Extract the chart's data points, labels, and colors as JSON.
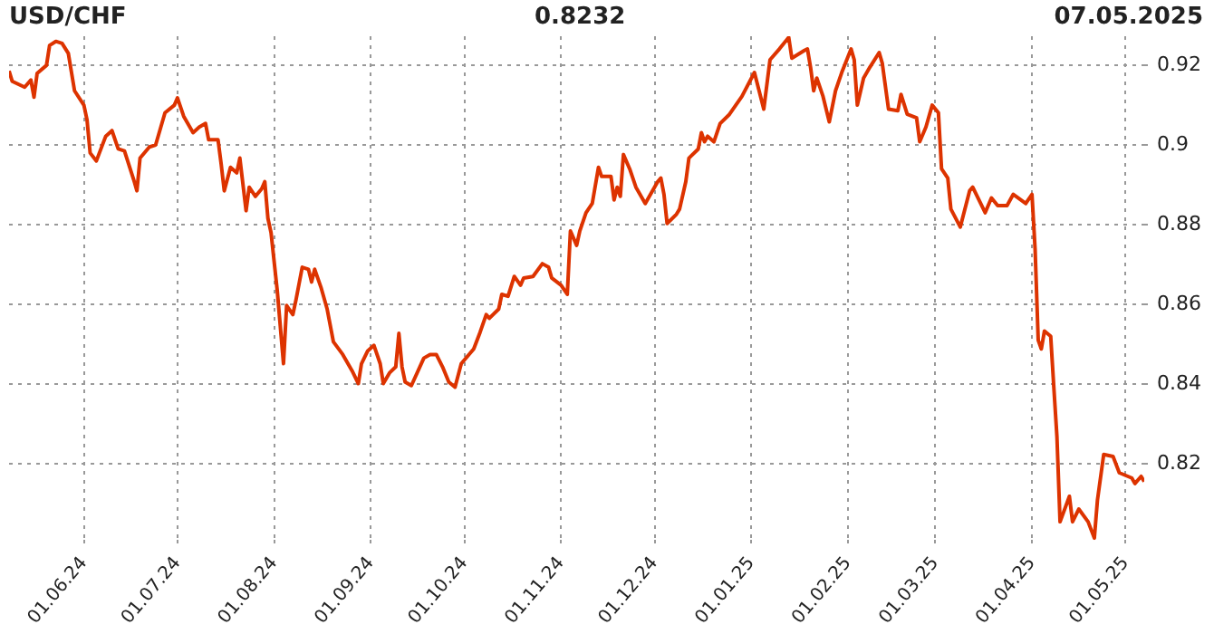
{
  "chart_data": {
    "type": "line",
    "title": "USD/CHF",
    "annotations": [
      "0.8232",
      "07.05.2025"
    ],
    "x": [
      "2024-05-08",
      "2024-05-09",
      "2024-05-13",
      "2024-05-15",
      "2024-05-16",
      "2024-05-17",
      "2024-05-20",
      "2024-05-21",
      "2024-05-23",
      "2024-05-25",
      "2024-05-27",
      "2024-05-29",
      "2024-06-01",
      "2024-06-02",
      "2024-06-03",
      "2024-06-05",
      "2024-06-08",
      "2024-06-10",
      "2024-06-12",
      "2024-06-14",
      "2024-06-17",
      "2024-06-18",
      "2024-06-19",
      "2024-06-22",
      "2024-06-24",
      "2024-06-27",
      "2024-06-30",
      "2024-07-01",
      "2024-07-03",
      "2024-07-06",
      "2024-07-08",
      "2024-07-10",
      "2024-07-11",
      "2024-07-14",
      "2024-07-15",
      "2024-07-16",
      "2024-07-18",
      "2024-07-20",
      "2024-07-21",
      "2024-07-23",
      "2024-07-24",
      "2024-07-26",
      "2024-07-28",
      "2024-07-29",
      "2024-07-30",
      "2024-07-31",
      "2024-08-02",
      "2024-08-04",
      "2024-08-05",
      "2024-08-07",
      "2024-08-08",
      "2024-08-10",
      "2024-08-12",
      "2024-08-13",
      "2024-08-14",
      "2024-08-16",
      "2024-08-18",
      "2024-08-20",
      "2024-08-23",
      "2024-08-26",
      "2024-08-28",
      "2024-08-29",
      "2024-08-31",
      "2024-09-02",
      "2024-09-04",
      "2024-09-05",
      "2024-09-07",
      "2024-09-09",
      "2024-09-10",
      "2024-09-11",
      "2024-09-12",
      "2024-09-14",
      "2024-09-18",
      "2024-09-20",
      "2024-09-22",
      "2024-09-24",
      "2024-09-26",
      "2024-09-28",
      "2024-09-30",
      "2024-10-04",
      "2024-10-06",
      "2024-10-08",
      "2024-10-09",
      "2024-10-12",
      "2024-10-13",
      "2024-10-15",
      "2024-10-17",
      "2024-10-19",
      "2024-10-20",
      "2024-10-23",
      "2024-10-26",
      "2024-10-28",
      "2024-10-29",
      "2024-11-01",
      "2024-11-03",
      "2024-11-04",
      "2024-11-06",
      "2024-11-07",
      "2024-11-09",
      "2024-11-11",
      "2024-11-13",
      "2024-11-14",
      "2024-11-17",
      "2024-11-18",
      "2024-11-19",
      "2024-11-20",
      "2024-11-21",
      "2024-11-23",
      "2024-11-25",
      "2024-11-28",
      "2024-12-02",
      "2024-12-03",
      "2024-12-04",
      "2024-12-05",
      "2024-12-08",
      "2024-12-09",
      "2024-12-11",
      "2024-12-12",
      "2024-12-15",
      "2024-12-16",
      "2024-12-17",
      "2024-12-18",
      "2024-12-20",
      "2024-12-22",
      "2024-12-25",
      "2024-12-29",
      "2025-01-02",
      "2025-01-05",
      "2025-01-07",
      "2025-01-10",
      "2025-01-13",
      "2025-01-14",
      "2025-01-18",
      "2025-01-19",
      "2025-01-20",
      "2025-01-21",
      "2025-01-22",
      "2025-01-24",
      "2025-01-26",
      "2025-01-28",
      "2025-01-30",
      "2025-02-02",
      "2025-02-03",
      "2025-02-04",
      "2025-02-06",
      "2025-02-08",
      "2025-02-11",
      "2025-02-12",
      "2025-02-14",
      "2025-02-17",
      "2025-02-18",
      "2025-02-20",
      "2025-02-23",
      "2025-02-24",
      "2025-02-26",
      "2025-02-28",
      "2025-03-02",
      "2025-03-03",
      "2025-03-05",
      "2025-03-06",
      "2025-03-09",
      "2025-03-12",
      "2025-03-13",
      "2025-03-17",
      "2025-03-19",
      "2025-03-21",
      "2025-03-24",
      "2025-03-26",
      "2025-03-30",
      "2025-04-01",
      "2025-04-02",
      "2025-04-03",
      "2025-04-04",
      "2025-04-05",
      "2025-04-07",
      "2025-04-08",
      "2025-04-09",
      "2025-04-10",
      "2025-04-13",
      "2025-04-14",
      "2025-04-16",
      "2025-04-19",
      "2025-04-21",
      "2025-04-22",
      "2025-04-24",
      "2025-04-27",
      "2025-04-29",
      "2025-05-03",
      "2025-05-04",
      "2025-05-06",
      "2025-05-07"
    ],
    "series": [
      {
        "color": "#dd3300",
        "values": [
          0.9186,
          0.916,
          0.9145,
          0.9163,
          0.912,
          0.918,
          0.92,
          0.925,
          0.926,
          0.9255,
          0.923,
          0.9136,
          0.91,
          0.9063,
          0.898,
          0.896,
          0.9022,
          0.9036,
          0.899,
          0.8985,
          0.8912,
          0.8885,
          0.8967,
          0.8995,
          0.9,
          0.9081,
          0.91,
          0.9118,
          0.9072,
          0.9031,
          0.9045,
          0.9054,
          0.9013,
          0.9013,
          0.8953,
          0.8885,
          0.8944,
          0.893,
          0.8967,
          0.8835,
          0.8894,
          0.8871,
          0.889,
          0.8908,
          0.8816,
          0.878,
          0.8634,
          0.8451,
          0.8597,
          0.8574,
          0.8611,
          0.8693,
          0.8688,
          0.8656,
          0.8688,
          0.8643,
          0.8588,
          0.8506,
          0.8474,
          0.8433,
          0.8401,
          0.8451,
          0.8483,
          0.8497,
          0.8451,
          0.8401,
          0.8428,
          0.8443,
          0.8527,
          0.8443,
          0.8405,
          0.8396,
          0.8465,
          0.8474,
          0.8474,
          0.8443,
          0.8405,
          0.8392,
          0.8451,
          0.8488,
          0.8529,
          0.8574,
          0.8565,
          0.8588,
          0.8625,
          0.862,
          0.867,
          0.8648,
          0.8666,
          0.867,
          0.8702,
          0.8693,
          0.8666,
          0.8648,
          0.8625,
          0.8784,
          0.8748,
          0.8784,
          0.883,
          0.8853,
          0.8944,
          0.8921,
          0.8921,
          0.8862,
          0.8894,
          0.8871,
          0.8976,
          0.894,
          0.8894,
          0.8853,
          0.8908,
          0.8917,
          0.8876,
          0.8803,
          0.8826,
          0.8839,
          0.8908,
          0.8967,
          0.899,
          0.9031,
          0.9008,
          0.9022,
          0.9008,
          0.9054,
          0.9077,
          0.9122,
          0.9182,
          0.909,
          0.9214,
          0.9241,
          0.927,
          0.9218,
          0.9237,
          0.9241,
          0.9195,
          0.9136,
          0.9168,
          0.9122,
          0.9058,
          0.9136,
          0.9182,
          0.9241,
          0.9214,
          0.91,
          0.9168,
          0.9195,
          0.9232,
          0.9205,
          0.909,
          0.9086,
          0.9127,
          0.9077,
          0.9068,
          0.9008,
          0.9045,
          0.91,
          0.9081,
          0.894,
          0.8917,
          0.8839,
          0.8794,
          0.8885,
          0.8894,
          0.883,
          0.8867,
          0.8848,
          0.8848,
          0.8876,
          0.8853,
          0.8876,
          0.8739,
          0.851,
          0.8488,
          0.8533,
          0.852,
          0.8392,
          0.8268,
          0.8054,
          0.8118,
          0.8054,
          0.8086,
          0.8054,
          0.8013,
          0.8109,
          0.8223,
          0.8218,
          0.8177,
          0.8164,
          0.815,
          0.8168,
          0.8155
        ]
      }
    ],
    "xlim": [
      "2024-05-08",
      "2025-05-07"
    ],
    "xticks": [
      {
        "value": "2024-06-01",
        "label": "01.06.24"
      },
      {
        "value": "2024-07-01",
        "label": "01.07.24"
      },
      {
        "value": "2024-08-01",
        "label": "01.08.24"
      },
      {
        "value": "2024-09-01",
        "label": "01.09.24"
      },
      {
        "value": "2024-10-01",
        "label": "01.10.24"
      },
      {
        "value": "2024-11-01",
        "label": "01.11.24"
      },
      {
        "value": "2024-12-01",
        "label": "01.12.24"
      },
      {
        "value": "2025-01-01",
        "label": "01.01.25"
      },
      {
        "value": "2025-02-01",
        "label": "01.02.25"
      },
      {
        "value": "2025-03-01",
        "label": "01.03.25"
      },
      {
        "value": "2025-04-01",
        "label": "01.04.25"
      },
      {
        "value": "2025-05-01",
        "label": "01.05.25"
      }
    ],
    "ylim": [
      0.8008,
      0.9273
    ],
    "yticks": [
      0.82,
      0.84,
      0.86,
      0.88,
      0.9,
      0.92
    ],
    "grid": true,
    "legend": false,
    "marker": "none",
    "line_style": "solid"
  }
}
